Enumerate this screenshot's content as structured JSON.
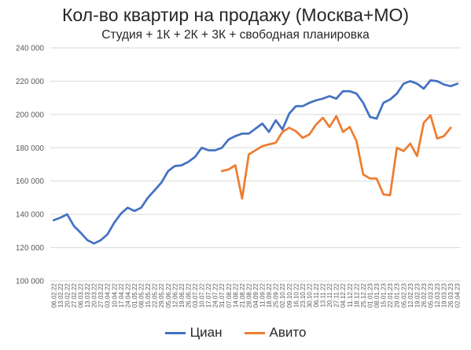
{
  "chart_data": {
    "type": "line",
    "title": "Кол-во квартир на продажу (Москва+МО)",
    "subtitle": "Студия + 1К + 2К + 3К + свободная планировка",
    "ylim": [
      100000,
      240000
    ],
    "yticks": [
      100000,
      120000,
      140000,
      160000,
      180000,
      200000,
      220000,
      240000
    ],
    "ytick_labels": [
      "100 000",
      "120 000",
      "140 000",
      "160 000",
      "180 000",
      "200 000",
      "220 000",
      "240 000"
    ],
    "grid": "horizontal",
    "legend_position": "bottom",
    "x": [
      "06.02.22",
      "13.02.22",
      "20.02.22",
      "27.02.22",
      "06.03.22",
      "13.03.22",
      "20.03.22",
      "27.03.22",
      "03.04.22",
      "10.04.22",
      "17.04.22",
      "24.04.22",
      "01.05.22",
      "08.05.22",
      "15.05.22",
      "22.05.22",
      "29.05.22",
      "05.06.22",
      "12.06.22",
      "19.06.22",
      "26.06.22",
      "03.07.22",
      "10.07.22",
      "17.07.22",
      "24.07.22",
      "31.07.22",
      "07.08.22",
      "14.08.22",
      "21.08.22",
      "28.08.22",
      "04.09.22",
      "11.09.22",
      "18.09.22",
      "25.09.22",
      "02.10.22",
      "09.10.22",
      "16.10.22",
      "23.10.22",
      "30.10.22",
      "06.11.22",
      "13.11.22",
      "20.11.22",
      "27.11.22",
      "04.12.22",
      "11.12.22",
      "18.12.22",
      "25.12.22",
      "01.01.23",
      "08.01.23",
      "15.01.23",
      "22.01.23",
      "29.01.23",
      "05.02.23",
      "12.02.23",
      "19.02.23",
      "26.02.23",
      "05.03.23",
      "12.03.23",
      "19.03.23",
      "26.03.23",
      "02.04.23"
    ],
    "series": [
      {
        "name": "Циан",
        "color": "#4472C4",
        "values": [
          136500,
          138000,
          140000,
          133000,
          129000,
          124500,
          122500,
          124500,
          128000,
          135000,
          140500,
          144000,
          142000,
          144000,
          150000,
          154500,
          159000,
          166000,
          169000,
          169500,
          171500,
          174500,
          180000,
          178500,
          178500,
          180000,
          185000,
          187000,
          188500,
          188500,
          191500,
          194500,
          189500,
          196500,
          191000,
          200500,
          205000,
          205000,
          207000,
          208500,
          209500,
          211000,
          209500,
          214000,
          214000,
          212500,
          207000,
          198500,
          197500,
          207000,
          209000,
          212500,
          218500,
          220000,
          218500,
          215500,
          220500,
          220000,
          218000,
          217000,
          218500
        ]
      },
      {
        "name": "Авито",
        "color": "#ED7D31",
        "values": [
          null,
          null,
          null,
          null,
          null,
          null,
          null,
          null,
          null,
          null,
          null,
          null,
          null,
          null,
          null,
          null,
          null,
          null,
          null,
          null,
          null,
          null,
          null,
          null,
          null,
          166000,
          167000,
          169500,
          149500,
          176000,
          178500,
          181000,
          182000,
          183000,
          189500,
          192000,
          190000,
          186000,
          188000,
          194000,
          198000,
          192500,
          199000,
          189500,
          192500,
          184000,
          164000,
          161500,
          161500,
          152000,
          151500,
          180000,
          178000,
          182500,
          175000,
          195000,
          199500,
          185500,
          187000,
          192000,
          null
        ]
      }
    ]
  }
}
